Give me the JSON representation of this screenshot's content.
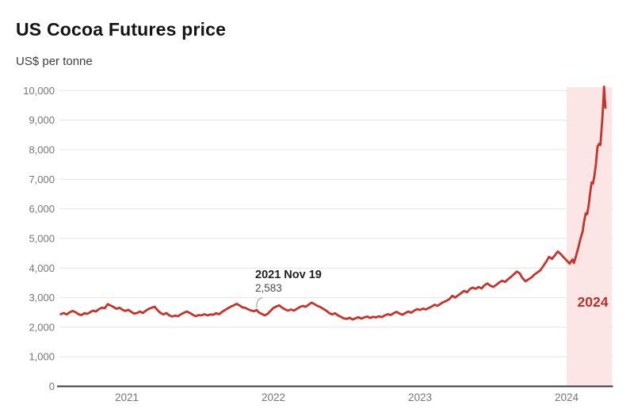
{
  "chart_data": {
    "type": "line",
    "title": "US Cocoa Futures price",
    "subtitle": "US$ per tonne",
    "xlabel": "",
    "ylabel": "US$ per tonne",
    "grid": true,
    "legend_position": "none",
    "x_range": [
      2020.53,
      2024.33
    ],
    "y_range": [
      0,
      10450
    ],
    "line_color": "#c5332a",
    "axis_color": "#3b3b3f",
    "grid_color": "#e4e4e4",
    "tick_label_color": "#757575",
    "x_ticks": [
      {
        "value": 2021,
        "label": "2021"
      },
      {
        "value": 2022,
        "label": "2022"
      },
      {
        "value": 2023,
        "label": "2023"
      },
      {
        "value": 2024,
        "label": "2024"
      }
    ],
    "y_ticks": [
      {
        "value": 0,
        "label": "0"
      },
      {
        "value": 1000,
        "label": "1,000"
      },
      {
        "value": 2000,
        "label": "2,000"
      },
      {
        "value": 3000,
        "label": "3,000"
      },
      {
        "value": 4000,
        "label": "4,000"
      },
      {
        "value": 5000,
        "label": "5,000"
      },
      {
        "value": 6000,
        "label": "6,000"
      },
      {
        "value": 7000,
        "label": "7,000"
      },
      {
        "value": 8000,
        "label": "8,000"
      },
      {
        "value": 9000,
        "label": "9,000"
      },
      {
        "value": 10000,
        "label": "10,000"
      }
    ],
    "annotation": {
      "x": 2021.885,
      "y": 2583,
      "date_label": "2021 Nov 19",
      "value_label": "2,583"
    },
    "highlight_band": {
      "from": 2024.0,
      "to": 2024.31,
      "label": "2024",
      "color": "#fbe3e1",
      "label_color": "#b7322a"
    },
    "series": [
      {
        "name": "US cocoa futures price (US$ per tonne)",
        "points": [
          [
            2020.55,
            2440
          ],
          [
            2020.57,
            2480
          ],
          [
            2020.59,
            2430
          ],
          [
            2020.61,
            2500
          ],
          [
            2020.63,
            2550
          ],
          [
            2020.65,
            2510
          ],
          [
            2020.67,
            2440
          ],
          [
            2020.69,
            2410
          ],
          [
            2020.71,
            2470
          ],
          [
            2020.73,
            2450
          ],
          [
            2020.75,
            2510
          ],
          [
            2020.77,
            2560
          ],
          [
            2020.79,
            2530
          ],
          [
            2020.81,
            2610
          ],
          [
            2020.83,
            2660
          ],
          [
            2020.85,
            2640
          ],
          [
            2020.87,
            2780
          ],
          [
            2020.89,
            2730
          ],
          [
            2020.91,
            2680
          ],
          [
            2020.93,
            2620
          ],
          [
            2020.95,
            2660
          ],
          [
            2020.97,
            2590
          ],
          [
            2020.99,
            2550
          ],
          [
            2021.01,
            2590
          ],
          [
            2021.03,
            2520
          ],
          [
            2021.05,
            2460
          ],
          [
            2021.07,
            2480
          ],
          [
            2021.09,
            2530
          ],
          [
            2021.11,
            2480
          ],
          [
            2021.13,
            2560
          ],
          [
            2021.15,
            2620
          ],
          [
            2021.17,
            2660
          ],
          [
            2021.19,
            2690
          ],
          [
            2021.21,
            2570
          ],
          [
            2021.23,
            2480
          ],
          [
            2021.25,
            2430
          ],
          [
            2021.27,
            2480
          ],
          [
            2021.29,
            2400
          ],
          [
            2021.31,
            2360
          ],
          [
            2021.33,
            2390
          ],
          [
            2021.35,
            2370
          ],
          [
            2021.37,
            2440
          ],
          [
            2021.39,
            2490
          ],
          [
            2021.41,
            2530
          ],
          [
            2021.43,
            2480
          ],
          [
            2021.45,
            2420
          ],
          [
            2021.47,
            2370
          ],
          [
            2021.49,
            2410
          ],
          [
            2021.51,
            2400
          ],
          [
            2021.53,
            2440
          ],
          [
            2021.55,
            2400
          ],
          [
            2021.57,
            2430
          ],
          [
            2021.59,
            2420
          ],
          [
            2021.61,
            2470
          ],
          [
            2021.63,
            2440
          ],
          [
            2021.65,
            2520
          ],
          [
            2021.67,
            2580
          ],
          [
            2021.69,
            2640
          ],
          [
            2021.71,
            2700
          ],
          [
            2021.73,
            2740
          ],
          [
            2021.75,
            2790
          ],
          [
            2021.77,
            2730
          ],
          [
            2021.79,
            2670
          ],
          [
            2021.81,
            2650
          ],
          [
            2021.83,
            2600
          ],
          [
            2021.85,
            2560
          ],
          [
            2021.87,
            2540
          ],
          [
            2021.885,
            2583
          ],
          [
            2021.9,
            2500
          ],
          [
            2021.92,
            2450
          ],
          [
            2021.94,
            2400
          ],
          [
            2021.96,
            2450
          ],
          [
            2021.98,
            2550
          ],
          [
            2022.0,
            2650
          ],
          [
            2022.02,
            2700
          ],
          [
            2022.04,
            2740
          ],
          [
            2022.06,
            2660
          ],
          [
            2022.08,
            2600
          ],
          [
            2022.1,
            2560
          ],
          [
            2022.12,
            2600
          ],
          [
            2022.14,
            2560
          ],
          [
            2022.16,
            2620
          ],
          [
            2022.18,
            2680
          ],
          [
            2022.2,
            2720
          ],
          [
            2022.22,
            2690
          ],
          [
            2022.24,
            2760
          ],
          [
            2022.26,
            2830
          ],
          [
            2022.28,
            2780
          ],
          [
            2022.3,
            2720
          ],
          [
            2022.32,
            2680
          ],
          [
            2022.34,
            2620
          ],
          [
            2022.36,
            2560
          ],
          [
            2022.38,
            2480
          ],
          [
            2022.4,
            2430
          ],
          [
            2022.42,
            2470
          ],
          [
            2022.44,
            2400
          ],
          [
            2022.46,
            2350
          ],
          [
            2022.48,
            2300
          ],
          [
            2022.5,
            2280
          ],
          [
            2022.52,
            2320
          ],
          [
            2022.54,
            2260
          ],
          [
            2022.56,
            2300
          ],
          [
            2022.58,
            2340
          ],
          [
            2022.6,
            2290
          ],
          [
            2022.62,
            2330
          ],
          [
            2022.64,
            2360
          ],
          [
            2022.66,
            2310
          ],
          [
            2022.68,
            2350
          ],
          [
            2022.7,
            2330
          ],
          [
            2022.72,
            2370
          ],
          [
            2022.74,
            2340
          ],
          [
            2022.76,
            2400
          ],
          [
            2022.78,
            2440
          ],
          [
            2022.8,
            2410
          ],
          [
            2022.82,
            2470
          ],
          [
            2022.84,
            2520
          ],
          [
            2022.86,
            2460
          ],
          [
            2022.88,
            2420
          ],
          [
            2022.9,
            2480
          ],
          [
            2022.92,
            2530
          ],
          [
            2022.94,
            2490
          ],
          [
            2022.96,
            2560
          ],
          [
            2022.98,
            2610
          ],
          [
            2023.0,
            2580
          ],
          [
            2023.02,
            2630
          ],
          [
            2023.04,
            2600
          ],
          [
            2023.06,
            2650
          ],
          [
            2023.08,
            2700
          ],
          [
            2023.1,
            2760
          ],
          [
            2023.12,
            2720
          ],
          [
            2023.14,
            2790
          ],
          [
            2023.16,
            2850
          ],
          [
            2023.18,
            2890
          ],
          [
            2023.2,
            2950
          ],
          [
            2023.22,
            3060
          ],
          [
            2023.24,
            3000
          ],
          [
            2023.26,
            3080
          ],
          [
            2023.28,
            3150
          ],
          [
            2023.3,
            3230
          ],
          [
            2023.32,
            3180
          ],
          [
            2023.34,
            3290
          ],
          [
            2023.36,
            3340
          ],
          [
            2023.38,
            3300
          ],
          [
            2023.4,
            3360
          ],
          [
            2023.42,
            3310
          ],
          [
            2023.44,
            3420
          ],
          [
            2023.46,
            3480
          ],
          [
            2023.48,
            3400
          ],
          [
            2023.5,
            3360
          ],
          [
            2023.52,
            3430
          ],
          [
            2023.54,
            3510
          ],
          [
            2023.56,
            3570
          ],
          [
            2023.58,
            3530
          ],
          [
            2023.6,
            3620
          ],
          [
            2023.62,
            3700
          ],
          [
            2023.64,
            3790
          ],
          [
            2023.66,
            3880
          ],
          [
            2023.68,
            3820
          ],
          [
            2023.7,
            3650
          ],
          [
            2023.72,
            3550
          ],
          [
            2023.74,
            3620
          ],
          [
            2023.76,
            3680
          ],
          [
            2023.78,
            3780
          ],
          [
            2023.8,
            3850
          ],
          [
            2023.82,
            3920
          ],
          [
            2023.84,
            4060
          ],
          [
            2023.86,
            4210
          ],
          [
            2023.88,
            4380
          ],
          [
            2023.9,
            4310
          ],
          [
            2023.92,
            4430
          ],
          [
            2023.94,
            4560
          ],
          [
            2023.96,
            4470
          ],
          [
            2023.98,
            4360
          ],
          [
            2024.0,
            4260
          ],
          [
            2024.02,
            4150
          ],
          [
            2024.04,
            4290
          ],
          [
            2024.05,
            4170
          ],
          [
            2024.065,
            4420
          ],
          [
            2024.08,
            4700
          ],
          [
            2024.095,
            5000
          ],
          [
            2024.11,
            5250
          ],
          [
            2024.12,
            5600
          ],
          [
            2024.13,
            5850
          ],
          [
            2024.14,
            5820
          ],
          [
            2024.15,
            6120
          ],
          [
            2024.16,
            6520
          ],
          [
            2024.17,
            6900
          ],
          [
            2024.18,
            6860
          ],
          [
            2024.19,
            7150
          ],
          [
            2024.2,
            7520
          ],
          [
            2024.21,
            8100
          ],
          [
            2024.22,
            8200
          ],
          [
            2024.23,
            8160
          ],
          [
            2024.235,
            8480
          ],
          [
            2024.245,
            9150
          ],
          [
            2024.25,
            9650
          ],
          [
            2024.255,
            10134
          ],
          [
            2024.26,
            9750
          ],
          [
            2024.265,
            9420
          ]
        ]
      }
    ]
  }
}
